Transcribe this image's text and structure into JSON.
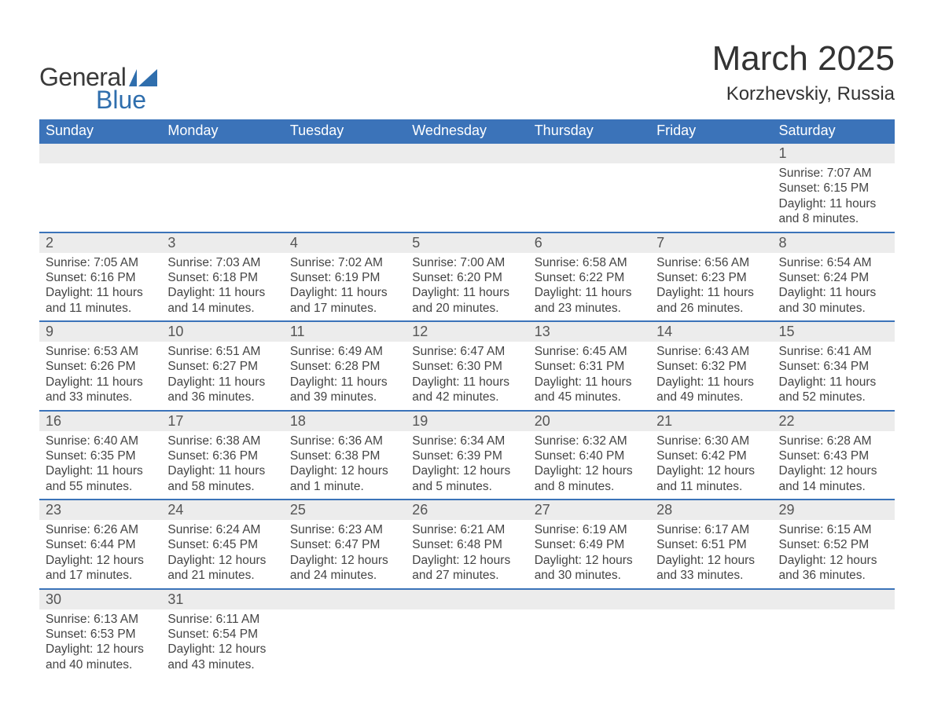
{
  "brand": {
    "word1": "General",
    "word2": "Blue",
    "accent_color": "#2f6ead"
  },
  "header": {
    "title": "March 2025",
    "location": "Korzhevskiy, Russia"
  },
  "colors": {
    "header_bg": "#3b73b9",
    "header_text": "#ffffff",
    "daynum_bg": "#ececec",
    "row_divider": "#3b73b9",
    "body_text": "#444444",
    "page_bg": "#ffffff"
  },
  "weekdays": [
    "Sunday",
    "Monday",
    "Tuesday",
    "Wednesday",
    "Thursday",
    "Friday",
    "Saturday"
  ],
  "labels": {
    "sunrise": "Sunrise",
    "sunset": "Sunset",
    "daylight": "Daylight"
  },
  "weeks": [
    [
      null,
      null,
      null,
      null,
      null,
      null,
      {
        "n": "1",
        "sunrise": "7:07 AM",
        "sunset": "6:15 PM",
        "daylight": "11 hours and 8 minutes."
      }
    ],
    [
      {
        "n": "2",
        "sunrise": "7:05 AM",
        "sunset": "6:16 PM",
        "daylight": "11 hours and 11 minutes."
      },
      {
        "n": "3",
        "sunrise": "7:03 AM",
        "sunset": "6:18 PM",
        "daylight": "11 hours and 14 minutes."
      },
      {
        "n": "4",
        "sunrise": "7:02 AM",
        "sunset": "6:19 PM",
        "daylight": "11 hours and 17 minutes."
      },
      {
        "n": "5",
        "sunrise": "7:00 AM",
        "sunset": "6:20 PM",
        "daylight": "11 hours and 20 minutes."
      },
      {
        "n": "6",
        "sunrise": "6:58 AM",
        "sunset": "6:22 PM",
        "daylight": "11 hours and 23 minutes."
      },
      {
        "n": "7",
        "sunrise": "6:56 AM",
        "sunset": "6:23 PM",
        "daylight": "11 hours and 26 minutes."
      },
      {
        "n": "8",
        "sunrise": "6:54 AM",
        "sunset": "6:24 PM",
        "daylight": "11 hours and 30 minutes."
      }
    ],
    [
      {
        "n": "9",
        "sunrise": "6:53 AM",
        "sunset": "6:26 PM",
        "daylight": "11 hours and 33 minutes."
      },
      {
        "n": "10",
        "sunrise": "6:51 AM",
        "sunset": "6:27 PM",
        "daylight": "11 hours and 36 minutes."
      },
      {
        "n": "11",
        "sunrise": "6:49 AM",
        "sunset": "6:28 PM",
        "daylight": "11 hours and 39 minutes."
      },
      {
        "n": "12",
        "sunrise": "6:47 AM",
        "sunset": "6:30 PM",
        "daylight": "11 hours and 42 minutes."
      },
      {
        "n": "13",
        "sunrise": "6:45 AM",
        "sunset": "6:31 PM",
        "daylight": "11 hours and 45 minutes."
      },
      {
        "n": "14",
        "sunrise": "6:43 AM",
        "sunset": "6:32 PM",
        "daylight": "11 hours and 49 minutes."
      },
      {
        "n": "15",
        "sunrise": "6:41 AM",
        "sunset": "6:34 PM",
        "daylight": "11 hours and 52 minutes."
      }
    ],
    [
      {
        "n": "16",
        "sunrise": "6:40 AM",
        "sunset": "6:35 PM",
        "daylight": "11 hours and 55 minutes."
      },
      {
        "n": "17",
        "sunrise": "6:38 AM",
        "sunset": "6:36 PM",
        "daylight": "11 hours and 58 minutes."
      },
      {
        "n": "18",
        "sunrise": "6:36 AM",
        "sunset": "6:38 PM",
        "daylight": "12 hours and 1 minute."
      },
      {
        "n": "19",
        "sunrise": "6:34 AM",
        "sunset": "6:39 PM",
        "daylight": "12 hours and 5 minutes."
      },
      {
        "n": "20",
        "sunrise": "6:32 AM",
        "sunset": "6:40 PM",
        "daylight": "12 hours and 8 minutes."
      },
      {
        "n": "21",
        "sunrise": "6:30 AM",
        "sunset": "6:42 PM",
        "daylight": "12 hours and 11 minutes."
      },
      {
        "n": "22",
        "sunrise": "6:28 AM",
        "sunset": "6:43 PM",
        "daylight": "12 hours and 14 minutes."
      }
    ],
    [
      {
        "n": "23",
        "sunrise": "6:26 AM",
        "sunset": "6:44 PM",
        "daylight": "12 hours and 17 minutes."
      },
      {
        "n": "24",
        "sunrise": "6:24 AM",
        "sunset": "6:45 PM",
        "daylight": "12 hours and 21 minutes."
      },
      {
        "n": "25",
        "sunrise": "6:23 AM",
        "sunset": "6:47 PM",
        "daylight": "12 hours and 24 minutes."
      },
      {
        "n": "26",
        "sunrise": "6:21 AM",
        "sunset": "6:48 PM",
        "daylight": "12 hours and 27 minutes."
      },
      {
        "n": "27",
        "sunrise": "6:19 AM",
        "sunset": "6:49 PM",
        "daylight": "12 hours and 30 minutes."
      },
      {
        "n": "28",
        "sunrise": "6:17 AM",
        "sunset": "6:51 PM",
        "daylight": "12 hours and 33 minutes."
      },
      {
        "n": "29",
        "sunrise": "6:15 AM",
        "sunset": "6:52 PM",
        "daylight": "12 hours and 36 minutes."
      }
    ],
    [
      {
        "n": "30",
        "sunrise": "6:13 AM",
        "sunset": "6:53 PM",
        "daylight": "12 hours and 40 minutes."
      },
      {
        "n": "31",
        "sunrise": "6:11 AM",
        "sunset": "6:54 PM",
        "daylight": "12 hours and 43 minutes."
      },
      null,
      null,
      null,
      null,
      null
    ]
  ]
}
